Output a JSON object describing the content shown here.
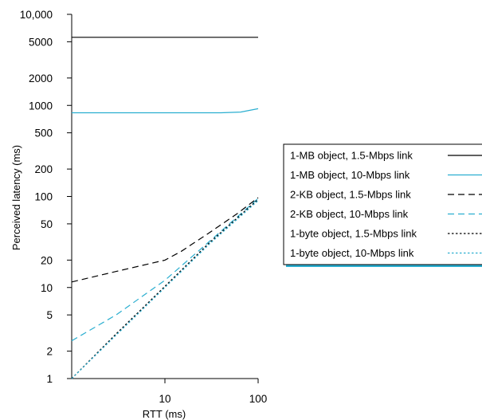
{
  "chart_data": {
    "type": "line",
    "title": "",
    "xlabel": "RTT (ms)",
    "ylabel": "Perceived latency (ms)",
    "x_scale": "log",
    "y_scale": "log",
    "xlim": [
      1,
      100
    ],
    "ylim": [
      1,
      10000
    ],
    "x_ticks": [
      {
        "value": 10,
        "label": "10"
      },
      {
        "value": 100,
        "label": "100"
      }
    ],
    "y_ticks": [
      {
        "value": 1,
        "label": "1"
      },
      {
        "value": 2,
        "label": "2"
      },
      {
        "value": 5,
        "label": "5"
      },
      {
        "value": 10,
        "label": "10"
      },
      {
        "value": 20,
        "label": "20"
      },
      {
        "value": 50,
        "label": "50"
      },
      {
        "value": 100,
        "label": "100"
      },
      {
        "value": 200,
        "label": "200"
      },
      {
        "value": 500,
        "label": "500"
      },
      {
        "value": 1000,
        "label": "1000"
      },
      {
        "value": 2000,
        "label": "2000"
      },
      {
        "value": 5000,
        "label": "5000"
      },
      {
        "value": 10000,
        "label": "10,000"
      }
    ],
    "grid": false,
    "legend_position": "right",
    "series": [
      {
        "name": "1-MB object, 1.5-Mbps link",
        "color": "#000000",
        "dash": "solid",
        "x": [
          1,
          10,
          100
        ],
        "y": [
          5600,
          5600,
          5600
        ]
      },
      {
        "name": "1-MB object, 10-Mbps link",
        "color": "#2aaed0",
        "dash": "solid",
        "x": [
          1,
          10,
          40,
          65,
          100
        ],
        "y": [
          830,
          830,
          830,
          845,
          920
        ]
      },
      {
        "name": "2-KB object, 1.5-Mbps link",
        "color": "#000000",
        "dash": "dashed",
        "x": [
          1,
          3,
          10,
          15,
          30,
          60,
          100
        ],
        "y": [
          11.5,
          15,
          20,
          25,
          40,
          65,
          97
        ]
      },
      {
        "name": "2-KB object, 10-Mbps link",
        "color": "#2aaed0",
        "dash": "dashed",
        "x": [
          1,
          3,
          10,
          30,
          100
        ],
        "y": [
          2.6,
          5,
          12,
          32,
          95
        ]
      },
      {
        "name": "1-byte object, 1.5-Mbps link",
        "color": "#000000",
        "dash": "dotted",
        "x": [
          1,
          3,
          10,
          30,
          100
        ],
        "y": [
          1,
          3.1,
          10.3,
          31,
          93
        ]
      },
      {
        "name": "1-byte object, 10-Mbps link",
        "color": "#2aaed0",
        "dash": "dotted",
        "x": [
          1,
          3,
          10,
          30,
          100
        ],
        "y": [
          1,
          3,
          10,
          30,
          90
        ]
      }
    ]
  }
}
